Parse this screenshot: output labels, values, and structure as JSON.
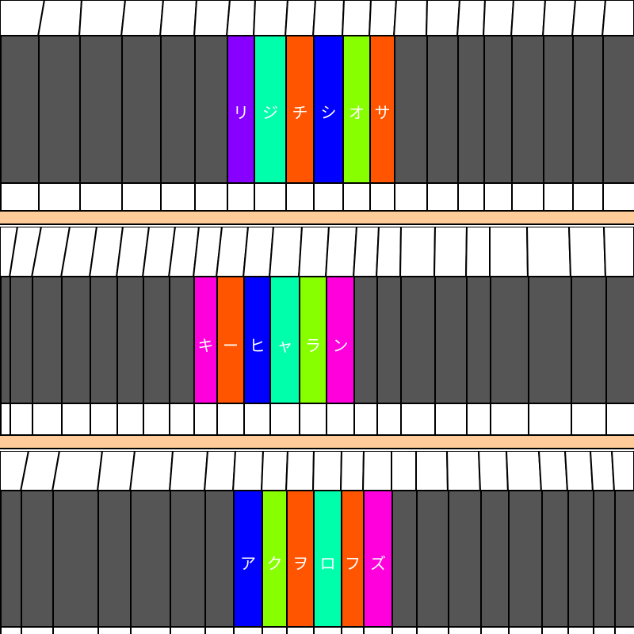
{
  "scene": "bookshelf-color-tiles",
  "palette": {
    "spine_dark": "#555555",
    "page_white": "#ffffff",
    "plank": "#ffcc99",
    "outline": "#000000",
    "violet": "#8800ff",
    "teal": "#00ffaa",
    "orange": "#ff5500",
    "blue": "#0000ff",
    "lime": "#88ff00",
    "magenta": "#ff00dd"
  },
  "rows": [
    {
      "id": "row-1",
      "tiles": [
        {
          "char": "リ",
          "color": "#8800ff"
        },
        {
          "char": "ジ",
          "color": "#00ffaa"
        },
        {
          "char": "チ",
          "color": "#ff5500"
        },
        {
          "char": "シ",
          "color": "#0000ff"
        },
        {
          "char": "オ",
          "color": "#88ff00"
        },
        {
          "char": "サ",
          "color": "#ff5500"
        }
      ]
    },
    {
      "id": "row-2",
      "tiles": [
        {
          "char": "キ",
          "color": "#ff00dd"
        },
        {
          "char": "ー",
          "color": "#ff5500"
        },
        {
          "char": "ヒ",
          "color": "#0000ff"
        },
        {
          "char": "ャ",
          "color": "#00ffaa"
        },
        {
          "char": "ラ",
          "color": "#88ff00"
        },
        {
          "char": "ン",
          "color": "#ff00dd"
        }
      ]
    },
    {
      "id": "row-3",
      "tiles": [
        {
          "char": "ア",
          "color": "#0000ff"
        },
        {
          "char": "ク",
          "color": "#88ff00"
        },
        {
          "char": "ヲ",
          "color": "#ff5500"
        },
        {
          "char": "ロ",
          "color": "#00ffaa"
        },
        {
          "char": "フ",
          "color": "#ff5500"
        },
        {
          "char": "ズ",
          "color": "#ff00dd"
        }
      ]
    }
  ]
}
